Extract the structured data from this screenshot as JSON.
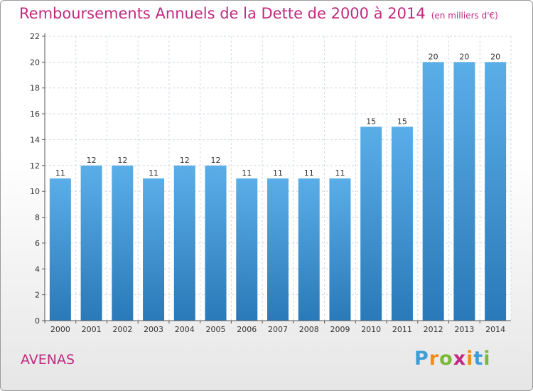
{
  "title": "Remboursements Annuels de la Dette de 2000 à 2014",
  "subtitle": "(en milliers d'€)",
  "commune": "AVENAS",
  "logo": {
    "letters": [
      "P",
      "r",
      "o",
      "x",
      "i",
      "t",
      "i"
    ],
    "colors": [
      "#3e9fd6",
      "#f08c1e",
      "#7ab83a",
      "#c02a80",
      "#f08c1e",
      "#3e9fd6",
      "#7ab83a"
    ]
  },
  "colors": {
    "bar_top": "#5aaee8",
    "bar_bottom": "#2a79b8",
    "title": "#c02a80",
    "grid": "#cfd8e6"
  },
  "chart_data": {
    "type": "bar",
    "categories": [
      "2000",
      "2001",
      "2002",
      "2003",
      "2004",
      "2005",
      "2006",
      "2007",
      "2008",
      "2009",
      "2010",
      "2011",
      "2012",
      "2013",
      "2014"
    ],
    "values": [
      11,
      12,
      12,
      11,
      12,
      12,
      11,
      11,
      11,
      11,
      15,
      15,
      20,
      20,
      20
    ],
    "title": "Remboursements Annuels de la Dette de 2000 à 2014",
    "subtitle": "(en milliers d'€)",
    "xlabel": "",
    "ylabel": "",
    "ylim": [
      0,
      22
    ],
    "yticks": [
      0,
      2,
      4,
      6,
      8,
      10,
      12,
      14,
      16,
      18,
      20,
      22
    ],
    "grid": true,
    "data_labels": true
  }
}
